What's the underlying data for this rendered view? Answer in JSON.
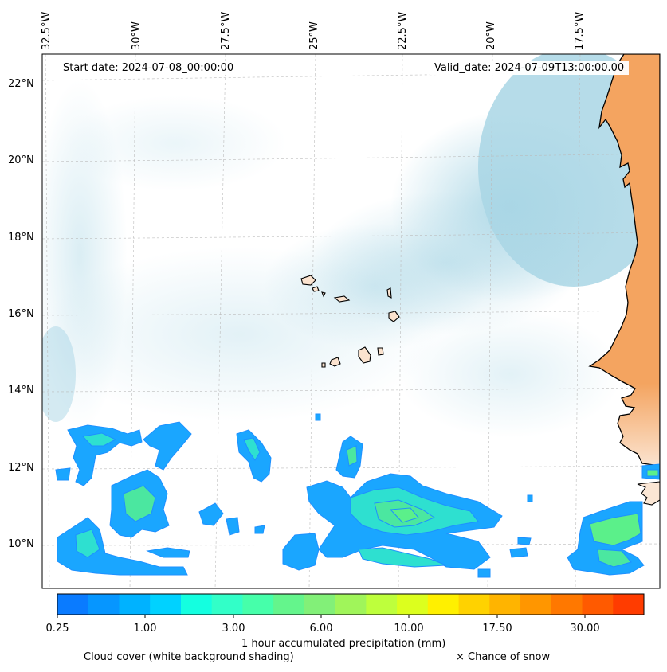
{
  "map": {
    "start_date": "Start date: 2024-07-08_00:00:00",
    "valid_date": "Valid_date: 2024-07-09T13:00:00.00",
    "lat_labels": [
      "22°N",
      "20°N",
      "18°N",
      "16°N",
      "14°N",
      "12°N",
      "10°N"
    ],
    "lon_labels": [
      "32.5°W",
      "30°W",
      "27.5°W",
      "25°W",
      "22.5°W",
      "20°W",
      "17.5°W"
    ],
    "land_color": "#f4a460",
    "ocean_color": "#ffffff",
    "cloud_color": "#a9d6e5",
    "gridlines": "dashed"
  },
  "colorbar": {
    "label": "1 hour accumulated precipitation (mm)",
    "ticks": [
      "0.25",
      "1.00",
      "3.00",
      "6.00",
      "10.00",
      "17.50",
      "30.00"
    ],
    "colors": [
      "#0a7bff",
      "#0696ff",
      "#00b2ff",
      "#00d2ff",
      "#14ffe0",
      "#32ffc8",
      "#46ffaa",
      "#64f58c",
      "#82f078",
      "#a0f55a",
      "#beff3c",
      "#dcff1e",
      "#fff000",
      "#ffd200",
      "#ffb400",
      "#ff9600",
      "#ff7800",
      "#ff5a00",
      "#ff3c00"
    ]
  },
  "captions": {
    "cloud_cover": "Cloud cover (white background shading)",
    "snow": "× Chance of snow"
  }
}
